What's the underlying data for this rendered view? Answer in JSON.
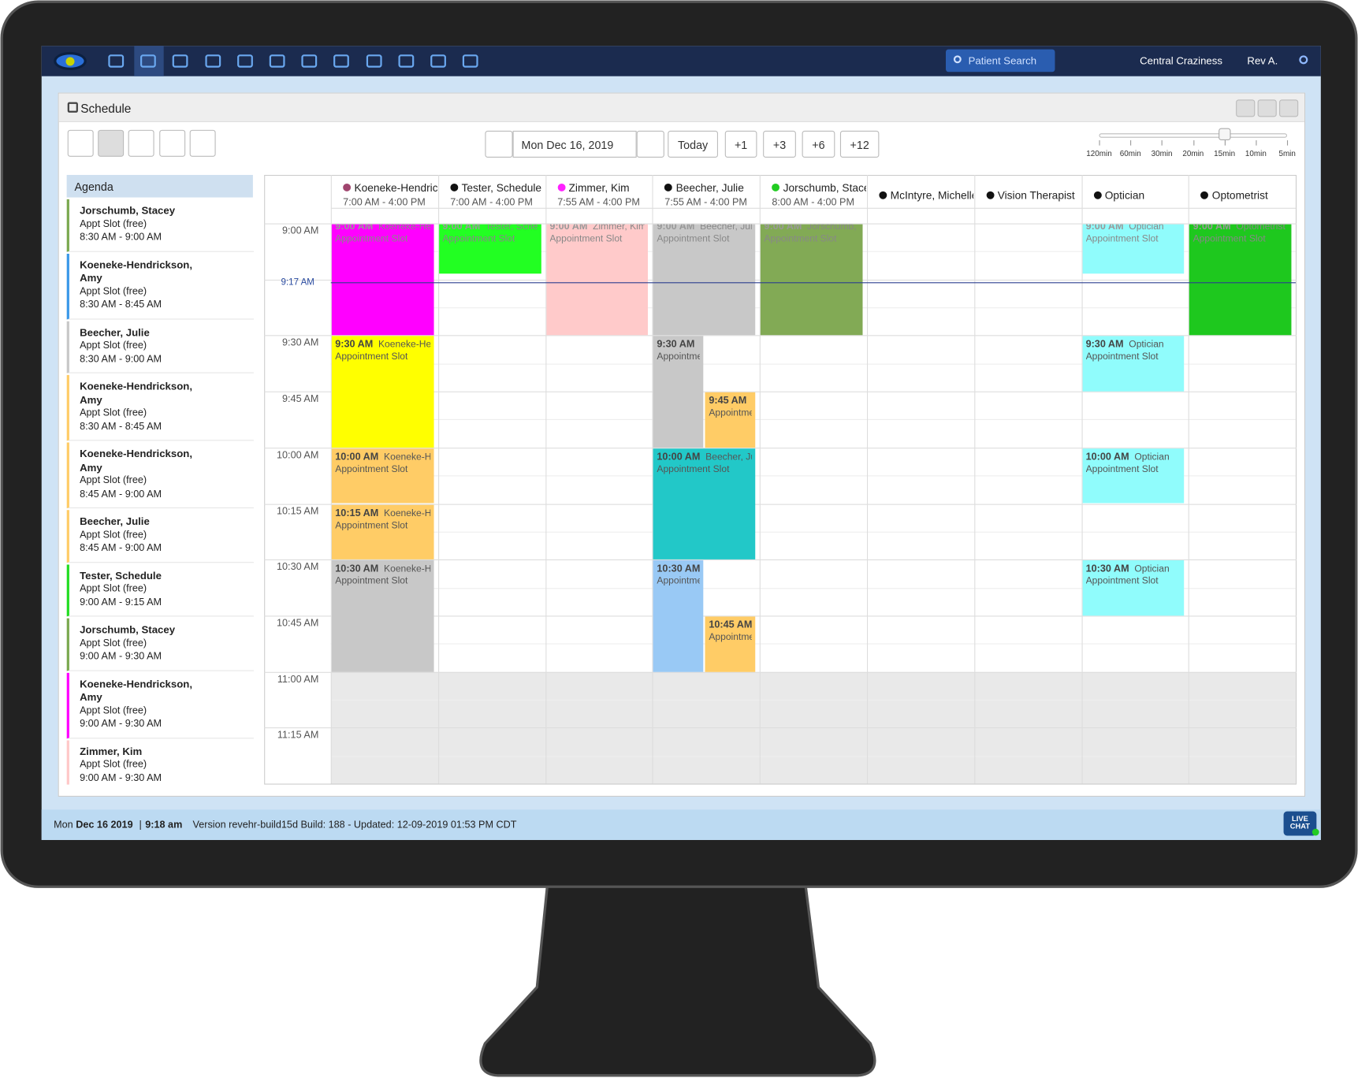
{
  "navbar": {
    "search": "Patient Search",
    "location": "Central Craziness",
    "user": "Rev A."
  },
  "panel": {
    "title": "Schedule"
  },
  "toolbar": {
    "date": "Mon Dec 16, 2019",
    "buttons": [
      "Today",
      "+1",
      "+3",
      "+6",
      "+12"
    ],
    "zoom_labels": [
      "120min",
      "60min",
      "30min",
      "20min",
      "15min",
      "10min",
      "5min"
    ]
  },
  "agenda": {
    "title": "Agenda",
    "items": [
      {
        "name": "Jorschumb, Stacey",
        "detail": "Appt Slot (free)",
        "time": "8:30 AM - 9:00 AM",
        "color": "#7aa84f"
      },
      {
        "name": "Koeneke-Hendrickson, Amy",
        "detail": "Appt Slot (free)",
        "time": "8:30 AM - 8:45 AM",
        "color": "#3a98e8"
      },
      {
        "name": "Beecher, Julie",
        "detail": "Appt Slot (free)",
        "time": "8:30 AM - 9:00 AM",
        "color": "#c8c8c8"
      },
      {
        "name": "Koeneke-Hendrickson, Amy",
        "detail": "Appt Slot (free)",
        "time": "8:30 AM - 8:45 AM",
        "color": "#ffcc66"
      },
      {
        "name": "Koeneke-Hendrickson, Amy",
        "detail": "Appt Slot (free)",
        "time": "8:45 AM - 9:00 AM",
        "color": "#ffcc66"
      },
      {
        "name": "Beecher, Julie",
        "detail": "Appt Slot (free)",
        "time": "8:45 AM - 9:00 AM",
        "color": "#ffcc66"
      },
      {
        "name": "Tester, Schedule",
        "detail": "Appt Slot (free)",
        "time": "9:00 AM - 9:15 AM",
        "color": "#22dd22"
      },
      {
        "name": "Jorschumb, Stacey",
        "detail": "Appt Slot (free)",
        "time": "9:00 AM - 9:30 AM",
        "color": "#7aa84f"
      },
      {
        "name": "Koeneke-Hendrickson, Amy",
        "detail": "Appt Slot (free)",
        "time": "9:00 AM - 9:30 AM",
        "color": "#ff00ff"
      },
      {
        "name": "Zimmer, Kim",
        "detail": "Appt Slot (free)",
        "time": "9:00 AM - 9:30 AM",
        "color": "#ffc8c8"
      }
    ]
  },
  "schedule": {
    "columns": [
      {
        "name": "Koeneke-Hendrickson, Amy",
        "hours": "7:00 AM - 4:00 PM",
        "dot": "#a0456e"
      },
      {
        "name": "Tester, Schedule",
        "hours": "7:00 AM - 4:00 PM",
        "dot": "#111111"
      },
      {
        "name": "Zimmer, Kim",
        "hours": "7:55 AM - 4:00 PM",
        "dot": "#ff22ff"
      },
      {
        "name": "Beecher, Julie",
        "hours": "7:55 AM - 4:00 PM",
        "dot": "#111111"
      },
      {
        "name": "Jorschumb, Stacey",
        "hours": "8:00 AM - 4:00 PM",
        "dot": "#22cc22"
      },
      {
        "name": "McIntyre, Michelle",
        "dot": "#111111"
      },
      {
        "name": "Vision Therapist",
        "dot": "#111111"
      },
      {
        "name": "Optician",
        "dot": "#111111"
      },
      {
        "name": "Optometrist",
        "dot": "#111111"
      }
    ],
    "times": [
      "9:00 AM",
      null,
      "9:30 AM",
      "9:45 AM",
      "10:00 AM",
      "10:15 AM",
      "10:30 AM",
      "10:45 AM",
      "11:00 AM",
      "11:15 AM"
    ],
    "now": "9:17 AM",
    "events": [
      {
        "time": "9:00 AM",
        "name": "Koeneke-Hendrickson, Amy",
        "label": "Appointment Slot",
        "color": "#ff00ff"
      },
      {
        "time": "9:00 AM",
        "name": "Tester, Schedule",
        "label": "Appointment Slot",
        "color": "#22ff22"
      },
      {
        "time": "9:00 AM",
        "name": "Zimmer, Kim",
        "label": "Appointment Slot",
        "color": "#ffcaca"
      },
      {
        "time": "9:00 AM",
        "name": "Beecher, Julie",
        "label": "Appointment Slot",
        "color": "#c8c8c8"
      },
      {
        "time": "9:00 AM",
        "name": "Jorschumb, Stacey",
        "label": "Appointment Slot",
        "color": "#82aa55"
      },
      {
        "time": "9:00 AM",
        "name": "Optician",
        "label": "Appointment Slot",
        "color": "#90fcfc"
      },
      {
        "time": "9:00 AM",
        "name": "Optometrist",
        "label": "Appointment Slot",
        "color": "#1ec81e"
      },
      {
        "time": "9:30 AM",
        "name": "Koeneke-Hendrickson, Amy",
        "label": "Appointment Slot",
        "color": "#ffff00"
      },
      {
        "time": "9:30 AM",
        "label": "Appointment Slot",
        "color": "#c8c8c8"
      },
      {
        "time": "9:30 AM",
        "name": "Optician",
        "label": "Appointment Slot",
        "color": "#90fcfc"
      },
      {
        "time": "9:45 AM",
        "label": "Appointment Slot",
        "color": "#ffcc66"
      },
      {
        "time": "10:00 AM",
        "name": "Koeneke-Hendrickson, Amy",
        "label": "Appointment Slot",
        "color": "#ffcc66"
      },
      {
        "time": "10:00 AM",
        "name": "Beecher, Julie",
        "label": "Appointment Slot",
        "color": "#22c8c8"
      },
      {
        "time": "10:00 AM",
        "name": "Optician",
        "label": "Appointment Slot",
        "color": "#90fcfc"
      },
      {
        "time": "10:15 AM",
        "name": "Koeneke-Hendrickson, Amy",
        "label": "Appointment Slot",
        "color": "#ffcc66"
      },
      {
        "time": "10:30 AM",
        "name": "Koeneke-Hendrickson, Amy",
        "label": "Appointment Slot",
        "color": "#c8c8c8"
      },
      {
        "time": "10:30 AM",
        "label": "Appointment Slot",
        "color": "#99c9f5"
      },
      {
        "time": "10:30 AM",
        "name": "Optician",
        "label": "Appointment Slot",
        "color": "#90fcfc"
      },
      {
        "time": "10:45 AM",
        "label": "Appointment Slot",
        "color": "#ffcc66"
      }
    ]
  },
  "footer": {
    "day": "Mon",
    "date": "Dec 16 2019",
    "separator": "|",
    "time": "9:18 am",
    "version": "Version revehr-build15d Build: 188 - Updated: 12-09-2019 01:53 PM CDT",
    "chat": "LIVE CHAT"
  }
}
